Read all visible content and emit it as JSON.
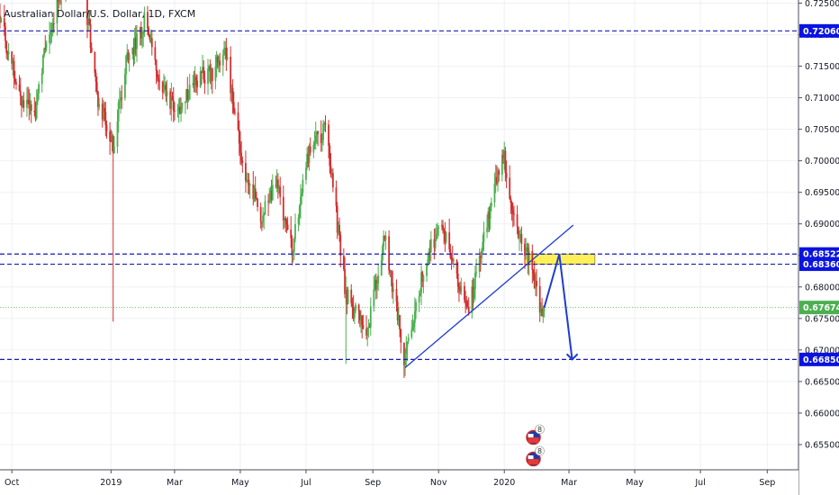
{
  "symbol": "Australian Dollar/U.S. Dollar, 1D, FXCM",
  "colors": {
    "up": "#4caf50",
    "down": "#d32f2f",
    "level_line": "#1a1ab5",
    "label_bg": "#0a13e0",
    "current_price_bg": "#4caf50",
    "current_line": "#4caf50",
    "zone_fill": "#fff05a",
    "zone_stroke": "#a8a030",
    "drawing": "#1f3cd1",
    "grid": "#eef0f4"
  },
  "icons": [
    "flag-au-icon",
    "flag-us-icon"
  ],
  "chart_data": {
    "type": "candlestick",
    "title": "Australian Dollar/U.S. Dollar, 1D, FXCM",
    "xlabel": "",
    "ylabel": "",
    "grid": true,
    "ylim": [
      0.651,
      0.7255
    ],
    "x_range": [
      "2018-09-20",
      "2020-09-30"
    ],
    "x_ticks": [
      "Oct",
      "2019",
      "Mar",
      "May",
      "Jul",
      "Sep",
      "Nov",
      "2020",
      "Mar",
      "May",
      "Jul",
      "Sep"
    ],
    "y_ticks": [
      "0.72500",
      "0.72000",
      "0.71500",
      "0.71000",
      "0.70500",
      "0.70000",
      "0.69500",
      "0.69000",
      "0.68500",
      "0.68000",
      "0.67500",
      "0.67000",
      "0.66500",
      "0.66000",
      "0.65500"
    ],
    "levels": [
      {
        "label": "0.72060",
        "value": 0.7206,
        "style": "dashed"
      },
      {
        "label": "0.68522",
        "value": 0.68522,
        "style": "dashed"
      },
      {
        "label": "0.68360",
        "value": 0.6836,
        "style": "dashed"
      },
      {
        "label": "0.66850",
        "value": 0.6685,
        "style": "dashed"
      }
    ],
    "current_price": {
      "label": "0.67674",
      "value": 0.67674
    },
    "price_path": [
      [
        "2018-09-20",
        0.723
      ],
      [
        "2018-10-01",
        0.715
      ],
      [
        "2018-10-10",
        0.7095
      ],
      [
        "2018-10-22",
        0.707
      ],
      [
        "2018-11-01",
        0.718
      ],
      [
        "2018-11-15",
        0.727
      ],
      [
        "2018-12-03",
        0.732
      ],
      [
        "2018-12-20",
        0.7095
      ],
      [
        "2019-01-03",
        0.702
      ],
      [
        "2019-01-15",
        0.716
      ],
      [
        "2019-02-01",
        0.722
      ],
      [
        "2019-02-15",
        0.7135
      ],
      [
        "2019-03-01",
        0.7075
      ],
      [
        "2019-03-20",
        0.713
      ],
      [
        "2019-04-05",
        0.714
      ],
      [
        "2019-04-17",
        0.718
      ],
      [
        "2019-05-01",
        0.701
      ],
      [
        "2019-05-20",
        0.691
      ],
      [
        "2019-06-03",
        0.697
      ],
      [
        "2019-06-18",
        0.686
      ],
      [
        "2019-07-04",
        0.702
      ],
      [
        "2019-07-19",
        0.705
      ],
      [
        "2019-08-07",
        0.679
      ],
      [
        "2019-08-26",
        0.672
      ],
      [
        "2019-09-12",
        0.688
      ],
      [
        "2019-10-01",
        0.668
      ],
      [
        "2019-10-20",
        0.685
      ],
      [
        "2019-11-04",
        0.69
      ],
      [
        "2019-11-29",
        0.676
      ],
      [
        "2019-12-13",
        0.688
      ],
      [
        "2019-12-31",
        0.702
      ],
      [
        "2020-01-10",
        0.69
      ],
      [
        "2020-01-24",
        0.685
      ],
      [
        "2020-02-05",
        0.676
      ],
      [
        "2020-02-07",
        0.6767
      ]
    ],
    "wick_spikes": [
      {
        "date": "2019-01-03",
        "high": 0.703,
        "low": 0.6745
      },
      {
        "date": "2019-08-07",
        "high": 0.6795,
        "low": 0.6678
      }
    ],
    "support_zone": {
      "from": "2020-01-20",
      "to": "2020-03-25",
      "low": 0.6836,
      "high": 0.6852
    },
    "trendline": [
      [
        "2019-10-01",
        0.6672
      ],
      [
        "2020-03-05",
        0.6898
      ]
    ],
    "projection": [
      [
        "2020-02-07",
        0.6767
      ],
      [
        "2020-02-21",
        0.6852
      ],
      [
        "2020-03-04",
        0.6685
      ]
    ]
  }
}
